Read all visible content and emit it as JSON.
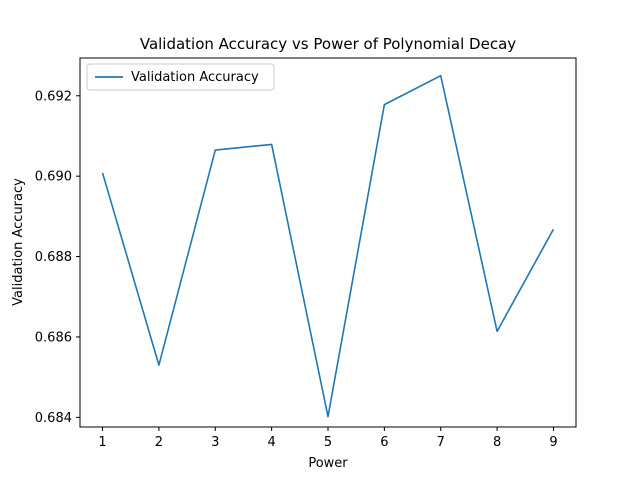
{
  "chart_data": {
    "type": "line",
    "title": "Validation Accuracy vs Power of Polynomial Decay",
    "xlabel": "Power",
    "ylabel": "Validation Accuracy",
    "xlim": [
      0.6,
      9.4
    ],
    "ylim": [
      0.68376,
      0.69294
    ],
    "xticks": [
      1,
      2,
      3,
      4,
      5,
      6,
      7,
      8,
      9
    ],
    "xtick_labels": [
      "1",
      "2",
      "3",
      "4",
      "5",
      "6",
      "7",
      "8",
      "9"
    ],
    "yticks": [
      0.684,
      0.686,
      0.688,
      0.69,
      0.692
    ],
    "ytick_labels": [
      "0.684",
      "0.686",
      "0.688",
      "0.690",
      "0.692"
    ],
    "grid": false,
    "legend_position": "top-left",
    "series": [
      {
        "name": "Validation Accuracy",
        "color": "#1f77b4",
        "x": [
          1,
          2,
          3,
          4,
          5,
          6,
          7,
          8,
          9
        ],
        "y": [
          0.69008,
          0.6853,
          0.69065,
          0.69079,
          0.68402,
          0.69178,
          0.6925,
          0.68614,
          0.68868
        ]
      }
    ]
  }
}
